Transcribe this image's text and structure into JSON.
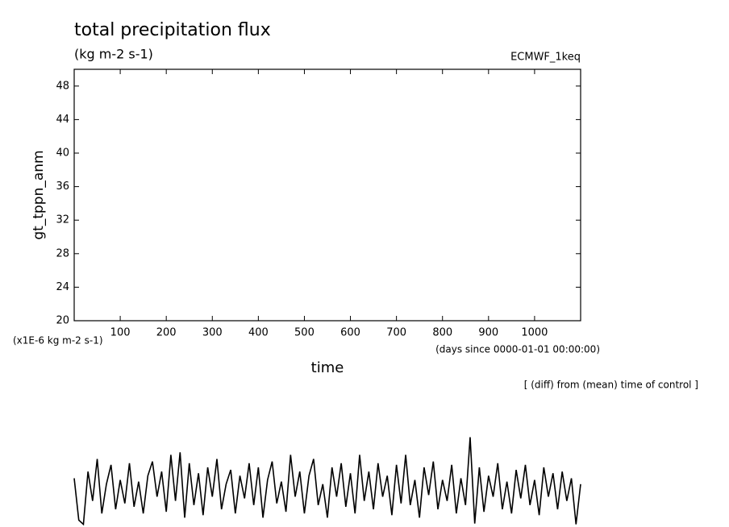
{
  "chart_data": {
    "type": "line",
    "title": "total precipitation flux",
    "subtitle": "(kg m-2 s-1)",
    "run_label": "ECMWF_1keq",
    "y_label": "gt_tppn_anm",
    "y_unit_label": "(x1E-6 kg m-2 s-1)",
    "x_label": "time",
    "x_unit_label": "(days since 0000-01-01 00:00:00)",
    "annotation": "[ (diff) from (mean) time of control ]",
    "xlim": [
      0,
      1100
    ],
    "xticks": [
      100,
      200,
      300,
      400,
      500,
      600,
      700,
      800,
      900,
      1000
    ],
    "ylim": [
      20,
      50
    ],
    "yticks": [
      20,
      24,
      28,
      32,
      36,
      40,
      44,
      48
    ],
    "x": [
      0,
      10,
      20,
      30,
      40,
      50,
      60,
      70,
      80,
      90,
      100,
      110,
      120,
      130,
      140,
      150,
      160,
      170,
      180,
      190,
      200,
      210,
      220,
      230,
      240,
      250,
      260,
      270,
      280,
      290,
      300,
      310,
      320,
      330,
      340,
      350,
      360,
      370,
      380,
      390,
      400,
      410,
      420,
      430,
      440,
      450,
      460,
      470,
      480,
      490,
      500,
      510,
      520,
      530,
      540,
      550,
      560,
      570,
      580,
      590,
      600,
      610,
      620,
      630,
      640,
      650,
      660,
      670,
      680,
      690,
      700,
      710,
      720,
      730,
      740,
      750,
      760,
      770,
      780,
      790,
      800,
      810,
      820,
      830,
      840,
      850,
      860,
      870,
      880,
      890,
      900,
      910,
      920,
      930,
      940,
      950,
      960,
      970,
      980,
      990,
      1000,
      1010,
      1020,
      1030,
      1040,
      1050,
      1060,
      1070,
      1080,
      1090,
      1100
    ],
    "series": [
      {
        "name": "gt_tppn_anm",
        "color": "#000000",
        "values": [
          1.2,
          -3.8,
          -4.3,
          2.0,
          -1.5,
          3.5,
          -3.0,
          0.5,
          2.8,
          -2.5,
          1.0,
          -1.8,
          3.0,
          -2.2,
          0.8,
          -3.0,
          1.5,
          3.2,
          -1.0,
          2.0,
          -2.8,
          4.0,
          -1.5,
          4.3,
          -3.5,
          3.0,
          -2.0,
          1.8,
          -3.2,
          2.5,
          -1.0,
          3.5,
          -2.5,
          0.5,
          2.2,
          -3.0,
          1.5,
          -1.2,
          3.0,
          -2.0,
          2.5,
          -3.5,
          1.0,
          3.2,
          -1.8,
          0.8,
          -2.8,
          4.0,
          -1.0,
          2.0,
          -3.0,
          1.5,
          3.5,
          -2.0,
          0.5,
          -3.5,
          2.5,
          -1.0,
          3.0,
          -2.2,
          1.8,
          -3.0,
          4.0,
          -1.5,
          2.0,
          -2.5,
          3.0,
          -1.0,
          1.5,
          -3.2,
          2.8,
          -1.8,
          4.0,
          -2.0,
          1.0,
          -3.5,
          2.5,
          -0.8,
          3.2,
          -2.5,
          1.0,
          -1.5,
          2.8,
          -3.0,
          1.2,
          -2.0,
          6.1,
          -4.2,
          2.5,
          -2.8,
          1.5,
          -1.0,
          3.0,
          -2.5,
          0.8,
          -3.0,
          2.2,
          -1.2,
          2.8,
          -2.0,
          1.0,
          -3.2,
          2.5,
          -1.0,
          1.8,
          -2.5,
          2.0,
          -1.5,
          1.2,
          -4.3,
          0.5
        ]
      }
    ]
  }
}
